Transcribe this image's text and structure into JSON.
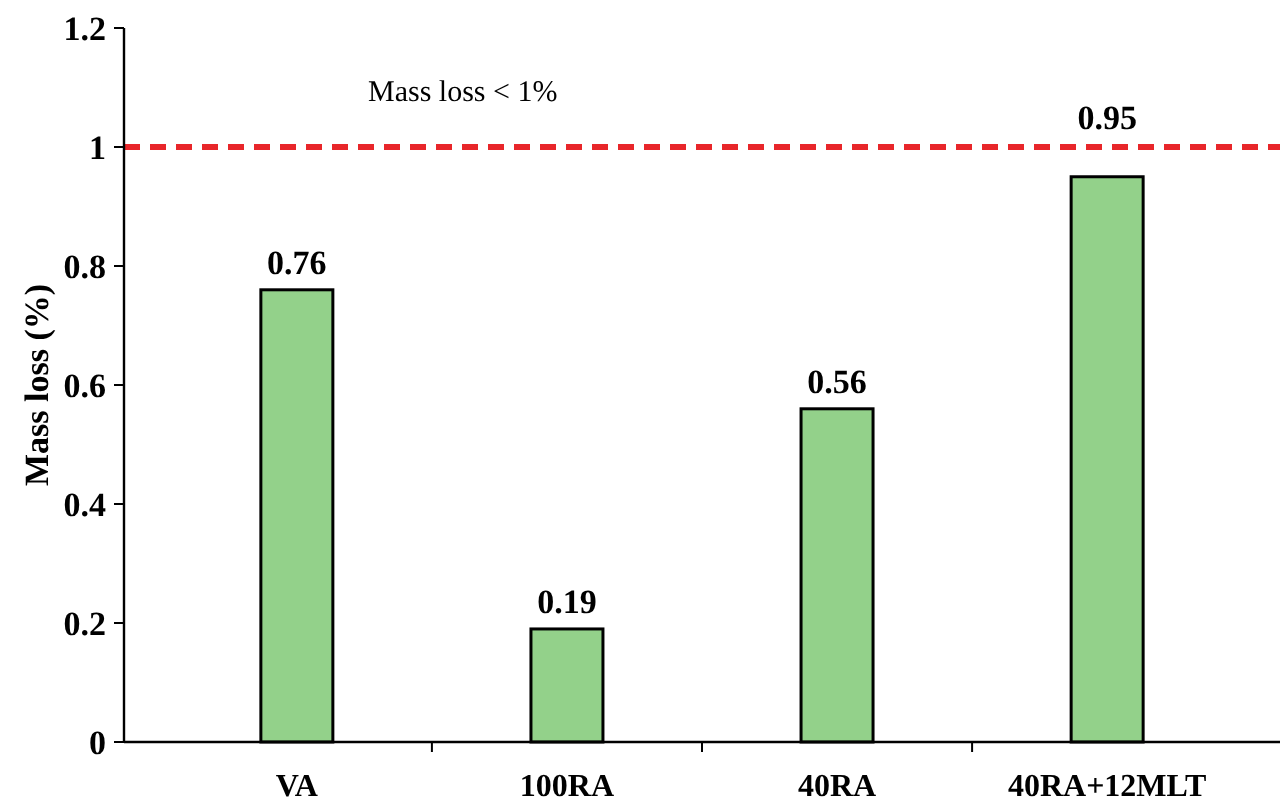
{
  "chart_data": {
    "type": "bar",
    "ylabel": "Mass loss (%)",
    "categories": [
      "VA",
      "100RA",
      "40RA",
      "40RA+12MLT"
    ],
    "values": [
      0.76,
      0.19,
      0.56,
      0.95
    ],
    "color": "#93d18a",
    "ylim": [
      0,
      1.2
    ],
    "yticks": [
      0,
      0.2,
      0.4,
      0.6,
      0.8,
      1,
      1.2
    ],
    "data_labels": true,
    "grid": false,
    "ref_lines": [
      {
        "axis": "y",
        "value": 1,
        "label": "Mass loss < 1%",
        "color": "#e8262a",
        "line_style": "dashed"
      }
    ]
  }
}
